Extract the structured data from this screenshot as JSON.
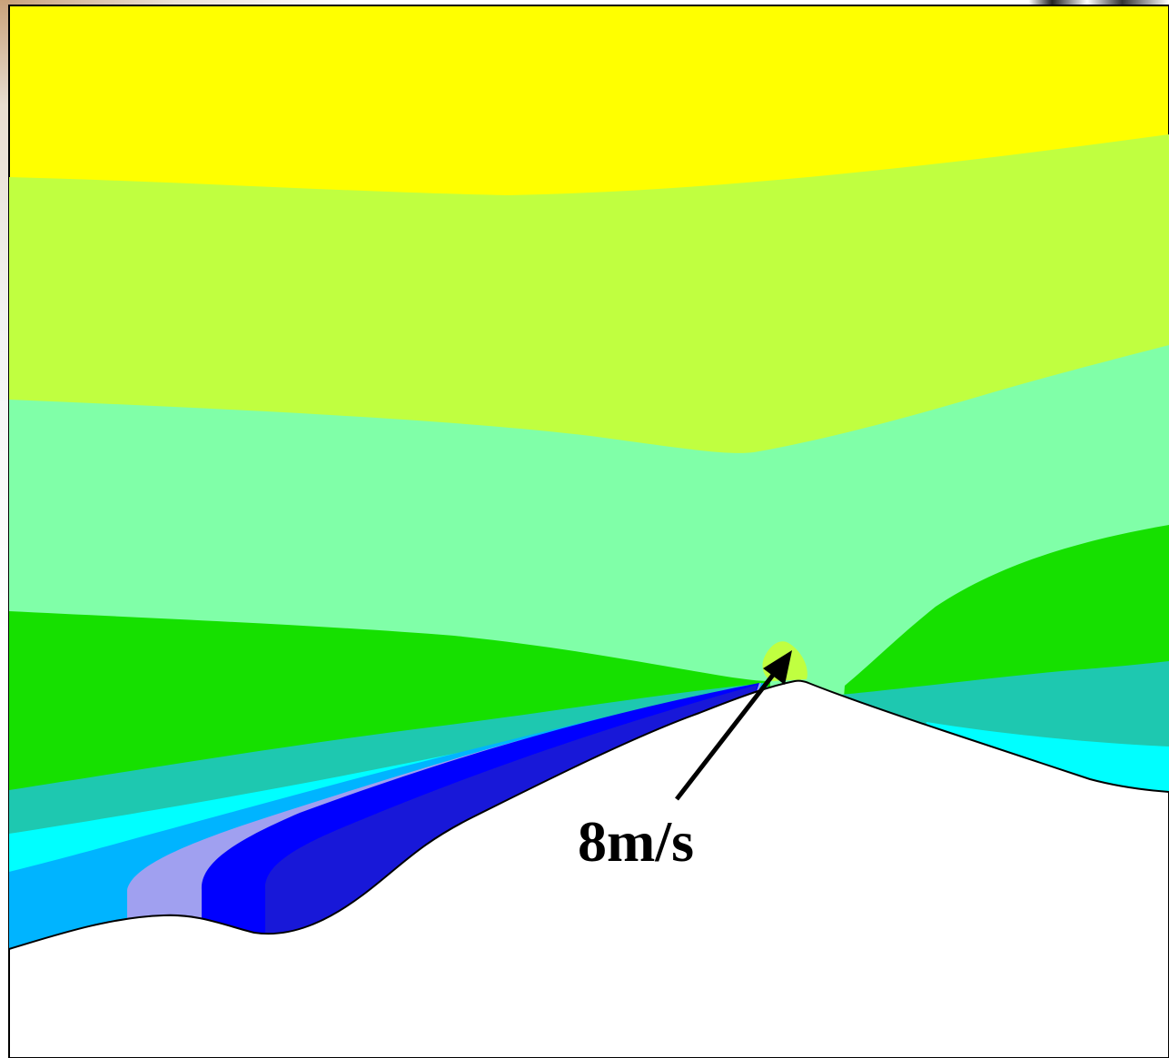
{
  "figure": {
    "annotation": {
      "label": "8m/s"
    },
    "colors": {
      "band_top": "#ffff00",
      "band_2": "#c0ff40",
      "band_3": "#80ffa8",
      "band_4": "#16e000",
      "band_5": "#1ec8b0",
      "band_6": "#00ffff",
      "band_7": "#00b4ff",
      "band_8": "#a0a0f0",
      "band_9": "#0000ff",
      "band_10": "#1818d8",
      "terrain": "#ffffff",
      "outline": "#000000"
    }
  }
}
